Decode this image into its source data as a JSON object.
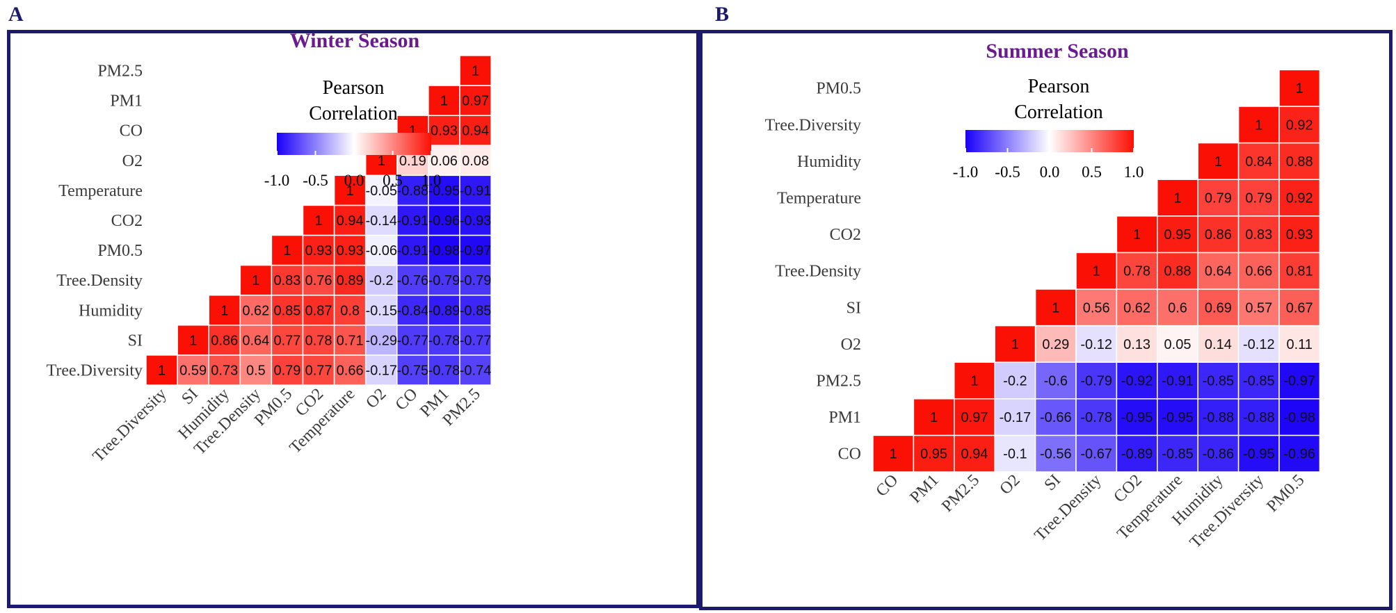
{
  "panels": {
    "A": {
      "letter": "A"
    },
    "B": {
      "letter": "B"
    }
  },
  "colors": {
    "neg": "#1a00f7",
    "mid": "#ffffff",
    "pos": "#fb1005",
    "title": "#6a1b8f",
    "frame": "#1b1a6b"
  },
  "chart_data": [
    {
      "type": "heatmap",
      "title": "Winter Season",
      "legend": {
        "title_line1": "Pearson",
        "title_line2": "Correlation",
        "ticks": [
          "-1.0",
          "-0.5",
          "0.0",
          "0.5",
          "1.0"
        ],
        "range": [
          -1,
          1
        ]
      },
      "row_labels_top_to_bottom": [
        "PM2.5",
        "PM1",
        "CO",
        "O2",
        "Temperature",
        "CO2",
        "PM0.5",
        "Tree.Density",
        "Humidity",
        "SI",
        "Tree.Diversity"
      ],
      "col_labels": [
        "Tree.Diversity",
        "SI",
        "Humidity",
        "Tree.Density",
        "PM0.5",
        "CO2",
        "Temperature",
        "O2",
        "CO",
        "PM1",
        "PM2.5"
      ],
      "matrix_rows_bottom_to_top": [
        [
          "1",
          "0.59",
          "0.73",
          "0.5",
          "0.79",
          "0.77",
          "0.66",
          "-0.17",
          "-0.75",
          "-0.78",
          "-0.74"
        ],
        [
          "1",
          "0.86",
          "0.64",
          "0.77",
          "0.78",
          "0.71",
          "-0.29",
          "-0.77",
          "-0.78",
          "-0.77"
        ],
        [
          "1",
          "0.62",
          "0.85",
          "0.87",
          "0.8",
          "-0.15",
          "-0.84",
          "-0.89",
          "-0.85"
        ],
        [
          "1",
          "0.83",
          "0.76",
          "0.89",
          "-0.2",
          "-0.76",
          "-0.79",
          "-0.79"
        ],
        [
          "1",
          "0.93",
          "0.93",
          "-0.06",
          "-0.91",
          "-0.98",
          "-0.97"
        ],
        [
          "1",
          "0.94",
          "-0.14",
          "-0.91",
          "-0.96",
          "-0.93"
        ],
        [
          "1",
          "-0.05",
          "-0.88",
          "-0.95",
          "-0.91"
        ],
        [
          "1",
          "0.19",
          "0.06",
          "0.08"
        ],
        [
          "1",
          "0.93",
          "0.94"
        ],
        [
          "1",
          "0.97"
        ],
        [
          "1"
        ]
      ]
    },
    {
      "type": "heatmap",
      "title": "Summer Season",
      "legend": {
        "title_line1": "Pearson",
        "title_line2": "Correlation",
        "ticks": [
          "-1.0",
          "-0.5",
          "0.0",
          "0.5",
          "1.0"
        ],
        "range": [
          -1,
          1
        ]
      },
      "row_labels_top_to_bottom": [
        "PM0.5",
        "Tree.Diversity",
        "Humidity",
        "Temperature",
        "CO2",
        "Tree.Density",
        "SI",
        "O2",
        "PM2.5",
        "PM1",
        "CO"
      ],
      "col_labels": [
        "CO",
        "PM1",
        "PM2.5",
        "O2",
        "SI",
        "Tree.Density",
        "CO2",
        "Temperature",
        "Humidity",
        "Tree.Diversity",
        "PM0.5"
      ],
      "matrix_rows_bottom_to_top": [
        [
          "1",
          "0.95",
          "0.94",
          "-0.1",
          "-0.56",
          "-0.67",
          "-0.89",
          "-0.85",
          "-0.86",
          "-0.95",
          "-0.96"
        ],
        [
          "1",
          "0.97",
          "-0.17",
          "-0.66",
          "-0.78",
          "-0.95",
          "-0.95",
          "-0.88",
          "-0.88",
          "-0.98"
        ],
        [
          "1",
          "-0.2",
          "-0.6",
          "-0.79",
          "-0.92",
          "-0.91",
          "-0.85",
          "-0.85",
          "-0.97"
        ],
        [
          "1",
          "0.29",
          "-0.12",
          "0.13",
          "0.05",
          "0.14",
          "-0.12",
          "0.11"
        ],
        [
          "1",
          "0.56",
          "0.62",
          "0.6",
          "0.69",
          "0.57",
          "0.67"
        ],
        [
          "1",
          "0.78",
          "0.88",
          "0.64",
          "0.66",
          "0.81"
        ],
        [
          "1",
          "0.95",
          "0.86",
          "0.83",
          "0.93"
        ],
        [
          "1",
          "0.79",
          "0.79",
          "0.92"
        ],
        [
          "1",
          "0.84",
          "0.88"
        ],
        [
          "1",
          "0.92"
        ],
        [
          "1"
        ]
      ]
    }
  ]
}
